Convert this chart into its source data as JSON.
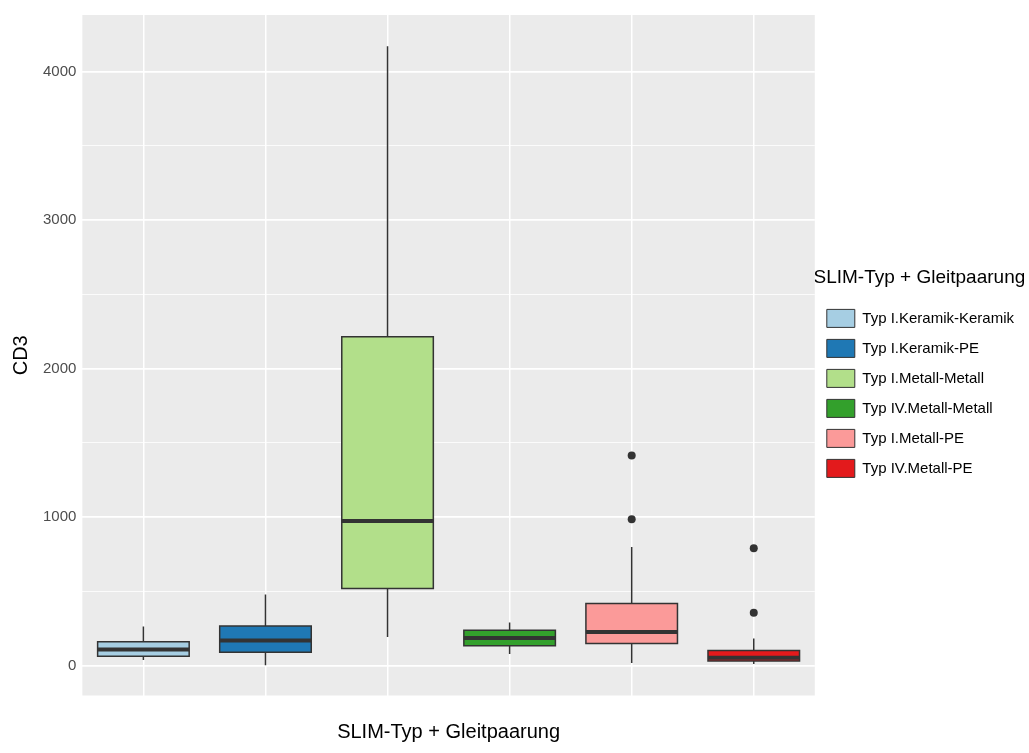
{
  "chart_data": {
    "type": "box",
    "xlabel": "SLIM-Typ + Gleitpaarung",
    "ylabel": "CD3",
    "legend_title": "SLIM-Typ + Gleitpaarung",
    "legend": "right",
    "grid": true,
    "categories": [
      null,
      null,
      null,
      null,
      null,
      null
    ],
    "ylim": [
      -200,
      4380
    ],
    "yticks": [
      0,
      {
        "value": 500,
        "label": null
      },
      1000,
      {
        "value": 1500,
        "label": null
      },
      2000,
      {
        "value": 2500,
        "label": null
      },
      3000,
      {
        "value": 3500,
        "label": null
      },
      4000
    ],
    "series": [
      {
        "name": "Typ I.Keramik-Keramik",
        "color": "#a6cee3",
        "boxes": [
          {
            "low": 40,
            "q1": 65,
            "median": 110,
            "q3": 162,
            "high": 265
          },
          null,
          null,
          null,
          null,
          null
        ]
      },
      {
        "name": "Typ I.Keramik-PE",
        "color": "#1f78b4",
        "boxes": [
          null,
          {
            "low": 5,
            "q1": 92,
            "median": 170,
            "q3": 268,
            "high": 480
          },
          null,
          null,
          null,
          null
        ]
      },
      {
        "name": "Typ I.Metall-Metall",
        "color": "#b2df8a",
        "boxes": [
          null,
          null,
          {
            "low": 195,
            "q1": 520,
            "median": 975,
            "q3": 2215,
            "high": 4170
          },
          null,
          null,
          null
        ]
      },
      {
        "name": "Typ IV.Metall-Metall",
        "color": "#33a02c",
        "boxes": [
          null,
          null,
          null,
          {
            "low": 80,
            "q1": 135,
            "median": 188,
            "q3": 240,
            "high": 292
          },
          null,
          null
        ]
      },
      {
        "name": "Typ I.Metall-PE",
        "color": "#fb9a99",
        "boxes": [
          null,
          null,
          null,
          null,
          {
            "low": 20,
            "q1": 150,
            "median": 228,
            "q3": 420,
            "high": 800,
            "outliers": [
              987,
              1415
            ]
          },
          null
        ]
      },
      {
        "name": "Typ IV.Metall-PE",
        "color": "#e31a1c",
        "boxes": [
          null,
          null,
          null,
          null,
          null,
          {
            "low": 13,
            "q1": 32,
            "median": 55,
            "q3": 104,
            "high": 184,
            "outliers": [
              357,
              792
            ]
          }
        ]
      }
    ]
  }
}
